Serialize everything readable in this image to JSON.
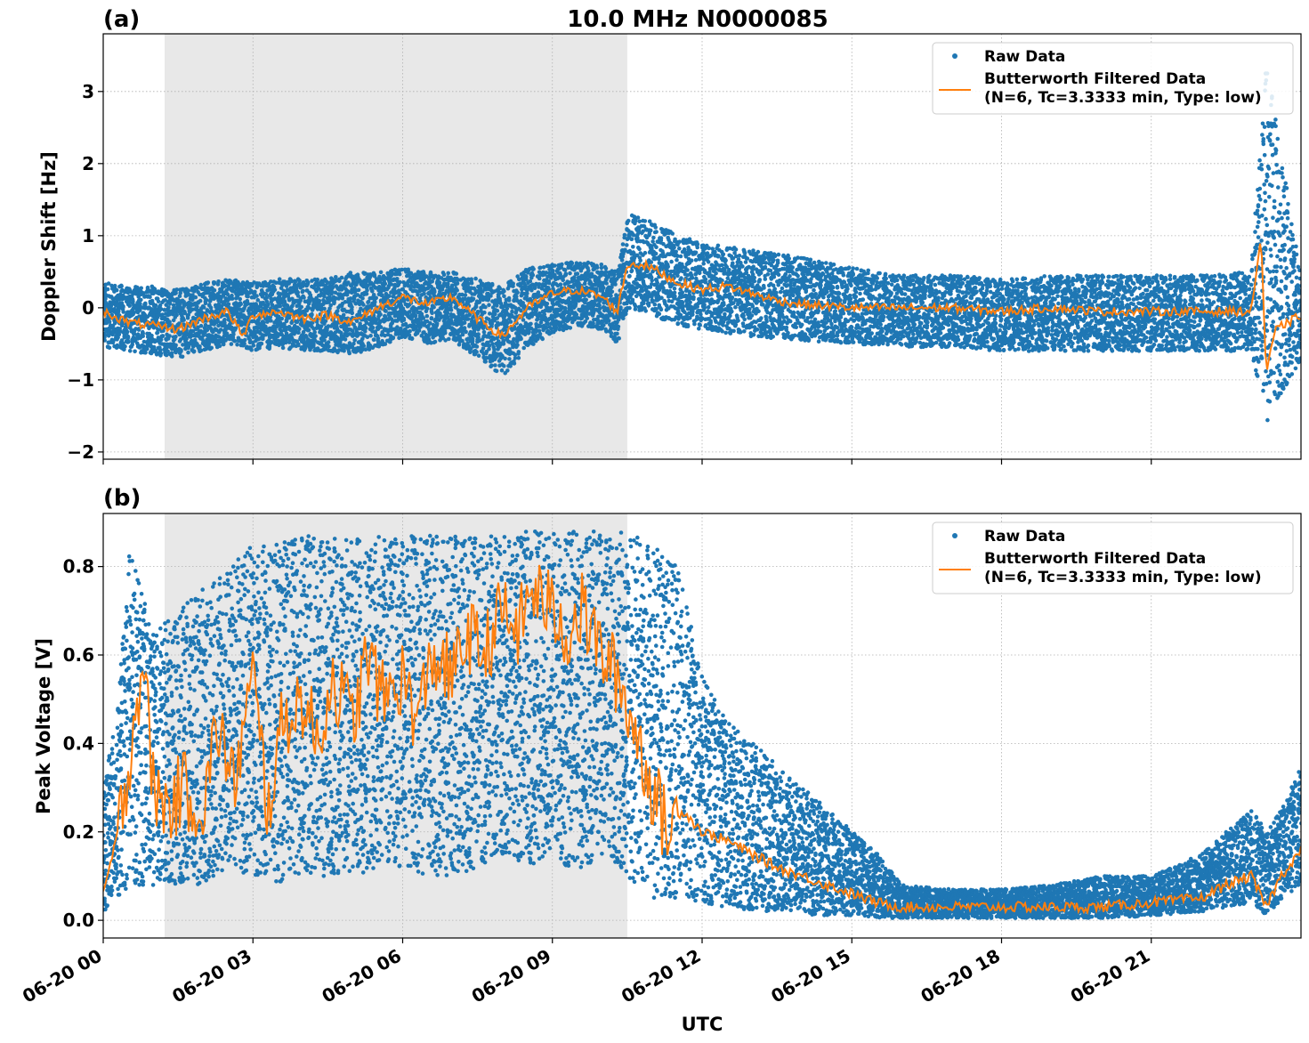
{
  "figure": {
    "title": "10.0 MHz N0000085",
    "xlabel": "UTC",
    "shade_label_note": ""
  },
  "legend": {
    "raw_label": "Raw Data",
    "filtered_label_line1": "Butterworth Filtered Data",
    "filtered_label_line2": "(N=6, Tc=3.3333 min, Type: low)"
  },
  "colors": {
    "raw": "#1f77b4",
    "filtered": "#ff7f0e",
    "shade": "#e8e8e8",
    "grid": "#b0b0b0"
  },
  "chart_data": [
    {
      "panel": "(a)",
      "type": "scatter",
      "title": "10.0 MHz N0000085",
      "xlabel": "UTC",
      "ylabel": "Doppler Shift [Hz]",
      "xlim_hours": [
        0,
        24
      ],
      "ylim": [
        -2.1,
        3.8
      ],
      "yticks": [
        3,
        2,
        1,
        0,
        -1,
        -2
      ],
      "ytick_labels": [
        "3",
        "2",
        "1",
        "0",
        "−1",
        "−2"
      ],
      "xticks_hours": [
        0,
        3,
        6,
        9,
        12,
        15,
        18,
        21
      ],
      "xtick_labels": [
        "06-20 00",
        "06-20 03",
        "06-20 06",
        "06-20 09",
        "06-20 12",
        "06-20 15",
        "06-20 18",
        "06-20 21"
      ],
      "shaded_interval_hours": [
        1.23,
        10.5
      ],
      "grid": true,
      "legend_position": "top-right",
      "series": [
        {
          "name": "Butterworth Filtered Data",
          "style": "line",
          "x": [
            0,
            0.5,
            1,
            1.5,
            2,
            2.5,
            2.8,
            3,
            3.5,
            4,
            4.5,
            5,
            5.5,
            6,
            6.5,
            7,
            7.5,
            8,
            8.5,
            9,
            9.5,
            10,
            10.3,
            10.5,
            10.8,
            11,
            11.5,
            12,
            12.5,
            13,
            13.5,
            14,
            15,
            16,
            17,
            18,
            19,
            20,
            21,
            22,
            23,
            23.2,
            23.3,
            23.5,
            24
          ],
          "y": [
            -0.05,
            -0.2,
            -0.25,
            -0.3,
            -0.15,
            -0.05,
            -0.4,
            -0.1,
            -0.05,
            -0.15,
            -0.1,
            -0.2,
            0.0,
            0.15,
            0.05,
            0.15,
            -0.15,
            -0.4,
            0.0,
            0.2,
            0.25,
            0.15,
            -0.05,
            0.6,
            0.6,
            0.55,
            0.35,
            0.25,
            0.3,
            0.2,
            0.1,
            0.05,
            0.0,
            0.0,
            0.0,
            -0.05,
            0.0,
            -0.05,
            -0.05,
            -0.05,
            -0.05,
            1.0,
            -0.9,
            -0.3,
            -0.1
          ]
        },
        {
          "name": "Raw Data",
          "style": "markers",
          "x": [
            0,
            0.5,
            1,
            1.5,
            2,
            2.5,
            3,
            3.5,
            4,
            4.5,
            5,
            5.5,
            6,
            6.5,
            7,
            7.5,
            8,
            8.5,
            9,
            9.5,
            10,
            10.3,
            10.5,
            11,
            11.5,
            12,
            12.5,
            13,
            14,
            15,
            16,
            17,
            18,
            19,
            20,
            21,
            22,
            23,
            23.3,
            24
          ],
          "y_upper": [
            0.35,
            0.3,
            0.3,
            0.25,
            0.35,
            0.4,
            0.35,
            0.4,
            0.4,
            0.4,
            0.5,
            0.5,
            0.55,
            0.5,
            0.5,
            0.4,
            0.3,
            0.55,
            0.6,
            0.65,
            0.6,
            0.5,
            1.3,
            1.2,
            1.0,
            0.9,
            0.85,
            0.8,
            0.7,
            0.55,
            0.45,
            0.45,
            0.4,
            0.45,
            0.45,
            0.45,
            0.45,
            0.5,
            3.5,
            0.4
          ],
          "y_lower": [
            -0.55,
            -0.6,
            -0.65,
            -0.7,
            -0.6,
            -0.5,
            -0.6,
            -0.55,
            -0.6,
            -0.6,
            -0.65,
            -0.55,
            -0.4,
            -0.5,
            -0.45,
            -0.7,
            -0.95,
            -0.55,
            -0.35,
            -0.25,
            -0.3,
            -0.5,
            0.0,
            -0.1,
            -0.25,
            -0.3,
            -0.35,
            -0.4,
            -0.45,
            -0.5,
            -0.55,
            -0.55,
            -0.6,
            -0.6,
            -0.6,
            -0.6,
            -0.6,
            -0.6,
            -1.6,
            -0.7
          ]
        }
      ]
    },
    {
      "panel": "(b)",
      "type": "scatter",
      "xlabel": "UTC",
      "ylabel": "Peak Voltage [V]",
      "xlim_hours": [
        0,
        24
      ],
      "ylim": [
        -0.04,
        0.92
      ],
      "yticks": [
        0.8,
        0.6,
        0.4,
        0.2,
        0.0
      ],
      "ytick_labels": [
        "0.8",
        "0.6",
        "0.4",
        "0.2",
        "0.0"
      ],
      "xticks_hours": [
        0,
        3,
        6,
        9,
        12,
        15,
        18,
        21
      ],
      "xtick_labels": [
        "06-20 00",
        "06-20 03",
        "06-20 06",
        "06-20 09",
        "06-20 12",
        "06-20 15",
        "06-20 18",
        "06-20 21"
      ],
      "shaded_interval_hours": [
        1.23,
        10.5
      ],
      "grid": true,
      "legend_position": "top-right",
      "series": [
        {
          "name": "Butterworth Filtered Data",
          "style": "line",
          "x": [
            0,
            0.3,
            0.5,
            0.8,
            1,
            1.3,
            1.6,
            2,
            2.3,
            2.6,
            3,
            3.3,
            3.6,
            4,
            4.3,
            4.6,
            5,
            5.3,
            5.6,
            6,
            6.3,
            6.6,
            7,
            7.3,
            7.6,
            8,
            8.3,
            8.6,
            9,
            9.3,
            9.6,
            10,
            10.3,
            10.6,
            11,
            11.3,
            11.6,
            12,
            12.5,
            13,
            13.5,
            14,
            14.5,
            15,
            15.5,
            16,
            17,
            18,
            19,
            20,
            21,
            22,
            22.5,
            23,
            23.3,
            23.6,
            24
          ],
          "y": [
            0.06,
            0.2,
            0.35,
            0.6,
            0.3,
            0.25,
            0.3,
            0.25,
            0.45,
            0.3,
            0.55,
            0.25,
            0.45,
            0.5,
            0.4,
            0.55,
            0.45,
            0.6,
            0.5,
            0.55,
            0.45,
            0.6,
            0.55,
            0.65,
            0.6,
            0.7,
            0.65,
            0.75,
            0.7,
            0.65,
            0.7,
            0.6,
            0.55,
            0.45,
            0.3,
            0.2,
            0.25,
            0.2,
            0.18,
            0.15,
            0.12,
            0.1,
            0.08,
            0.06,
            0.04,
            0.03,
            0.03,
            0.03,
            0.03,
            0.03,
            0.04,
            0.05,
            0.08,
            0.1,
            0.03,
            0.1,
            0.16
          ]
        },
        {
          "name": "Raw Data",
          "style": "markers",
          "x": [
            0,
            0.3,
            0.5,
            1,
            1.5,
            2,
            2.5,
            3,
            3.5,
            4,
            4.5,
            5,
            5.5,
            6,
            6.5,
            7,
            7.5,
            8,
            8.5,
            9,
            9.5,
            10,
            10.5,
            11,
            11.5,
            12,
            12.5,
            13,
            13.5,
            14,
            14.5,
            15,
            15.5,
            16,
            17,
            18,
            19,
            20,
            21,
            22,
            22.5,
            23,
            23.3,
            23.6,
            24
          ],
          "y_upper": [
            0.3,
            0.5,
            0.85,
            0.65,
            0.7,
            0.75,
            0.8,
            0.85,
            0.85,
            0.87,
            0.87,
            0.87,
            0.87,
            0.87,
            0.87,
            0.87,
            0.87,
            0.87,
            0.88,
            0.88,
            0.88,
            0.88,
            0.88,
            0.85,
            0.8,
            0.55,
            0.45,
            0.4,
            0.35,
            0.3,
            0.25,
            0.2,
            0.15,
            0.08,
            0.07,
            0.07,
            0.08,
            0.1,
            0.1,
            0.15,
            0.2,
            0.25,
            0.2,
            0.25,
            0.35
          ],
          "y_lower": [
            0.02,
            0.05,
            0.08,
            0.08,
            0.08,
            0.08,
            0.1,
            0.1,
            0.08,
            0.1,
            0.1,
            0.1,
            0.12,
            0.12,
            0.1,
            0.1,
            0.12,
            0.15,
            0.12,
            0.15,
            0.1,
            0.15,
            0.1,
            0.05,
            0.05,
            0.04,
            0.03,
            0.02,
            0.02,
            0.01,
            0.01,
            0.01,
            0.005,
            0.005,
            0.005,
            0.005,
            0.005,
            0.005,
            0.01,
            0.02,
            0.03,
            0.04,
            0.01,
            0.05,
            0.08
          ]
        }
      ]
    }
  ]
}
